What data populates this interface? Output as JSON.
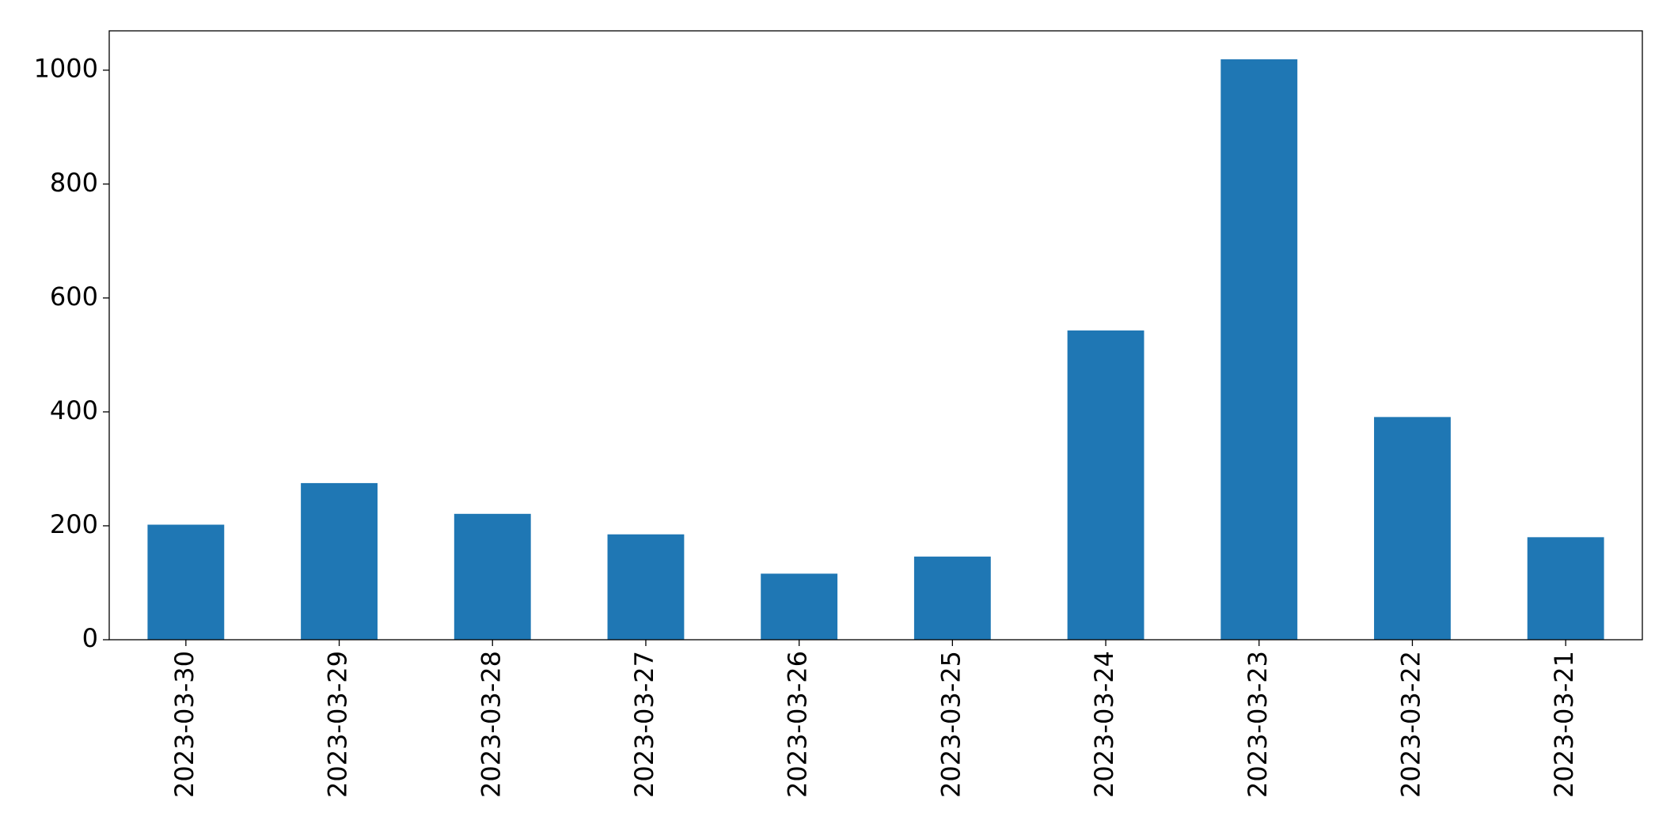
{
  "chart_data": {
    "type": "bar",
    "categories": [
      "2023-03-30",
      "2023-03-29",
      "2023-03-28",
      "2023-03-27",
      "2023-03-26",
      "2023-03-25",
      "2023-03-24",
      "2023-03-23",
      "2023-03-22",
      "2023-03-21"
    ],
    "values": [
      202,
      275,
      221,
      185,
      116,
      146,
      543,
      1019,
      391,
      180
    ],
    "color": "#1f77b4",
    "ylim": [
      0,
      1069
    ],
    "yticks": [
      0,
      200,
      400,
      600,
      800,
      1000
    ],
    "grid": false
  }
}
